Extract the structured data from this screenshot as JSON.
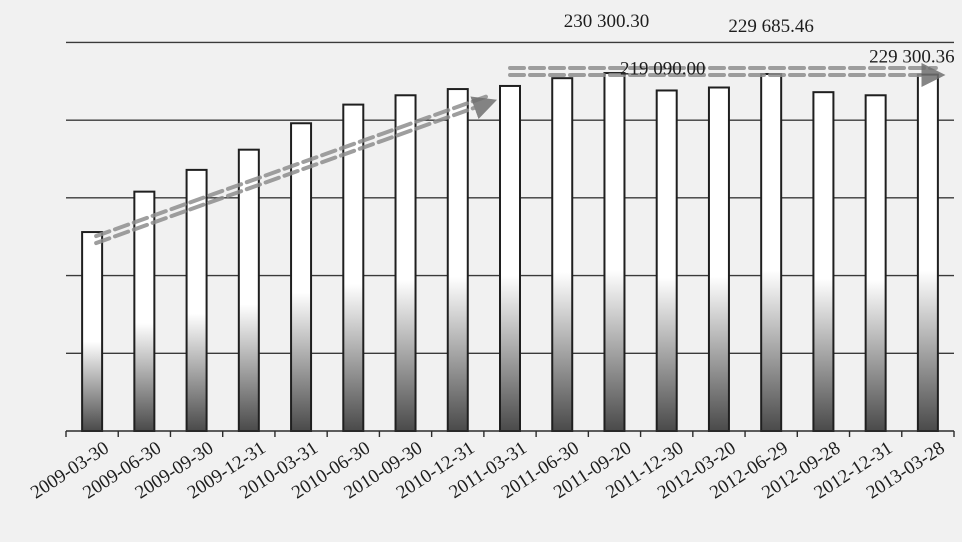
{
  "chart_data": {
    "type": "bar",
    "categories": [
      "2009-03-30",
      "2009-06-30",
      "2009-09-30",
      "2009-12-31",
      "2010-03-31",
      "2010-06-30",
      "2010-09-30",
      "2010-12-31",
      "2011-03-31",
      "2011-06-30",
      "2011-09-20",
      "2011-12-30",
      "2012-03-20",
      "2012-06-29",
      "2012-09-28",
      "2012-12-31",
      "2013-03-28"
    ],
    "values": [
      128000,
      154000,
      168000,
      181000,
      198000,
      210000,
      216000,
      220000,
      222000,
      227000,
      230300.3,
      219090.0,
      221000,
      229685.46,
      218000,
      216000,
      229300.36
    ],
    "ylim": [
      0,
      258000
    ],
    "gridlines": [
      0,
      50000,
      100000,
      150000,
      200000,
      250000
    ],
    "y_tick_labels_visible": false,
    "grid": true,
    "data_labels": [
      {
        "category": "2011-09-20",
        "text": "230 300.30"
      },
      {
        "category": "2011-12-30",
        "text": "219 090.00"
      },
      {
        "category": "2012-06-29",
        "text": "229 685.46"
      },
      {
        "category": "2013-03-28",
        "text": "229 300.36"
      }
    ],
    "trend_arrows": [
      {
        "from": "2009-03-30",
        "to": "2011-03-31",
        "direction": "rising"
      },
      {
        "from": "2011-03-31",
        "to": "2013-03-28",
        "direction": "flat"
      }
    ],
    "colors": {
      "background": "#f1f1f1",
      "bar_top": "#ffffff",
      "bar_bottom": "#4a4a4a",
      "bar_stroke": "#1f1f1f",
      "grid": "#3a3a3a",
      "trend_arrow": "#8e8e8e",
      "trend_arrow_head": "#707070"
    }
  }
}
